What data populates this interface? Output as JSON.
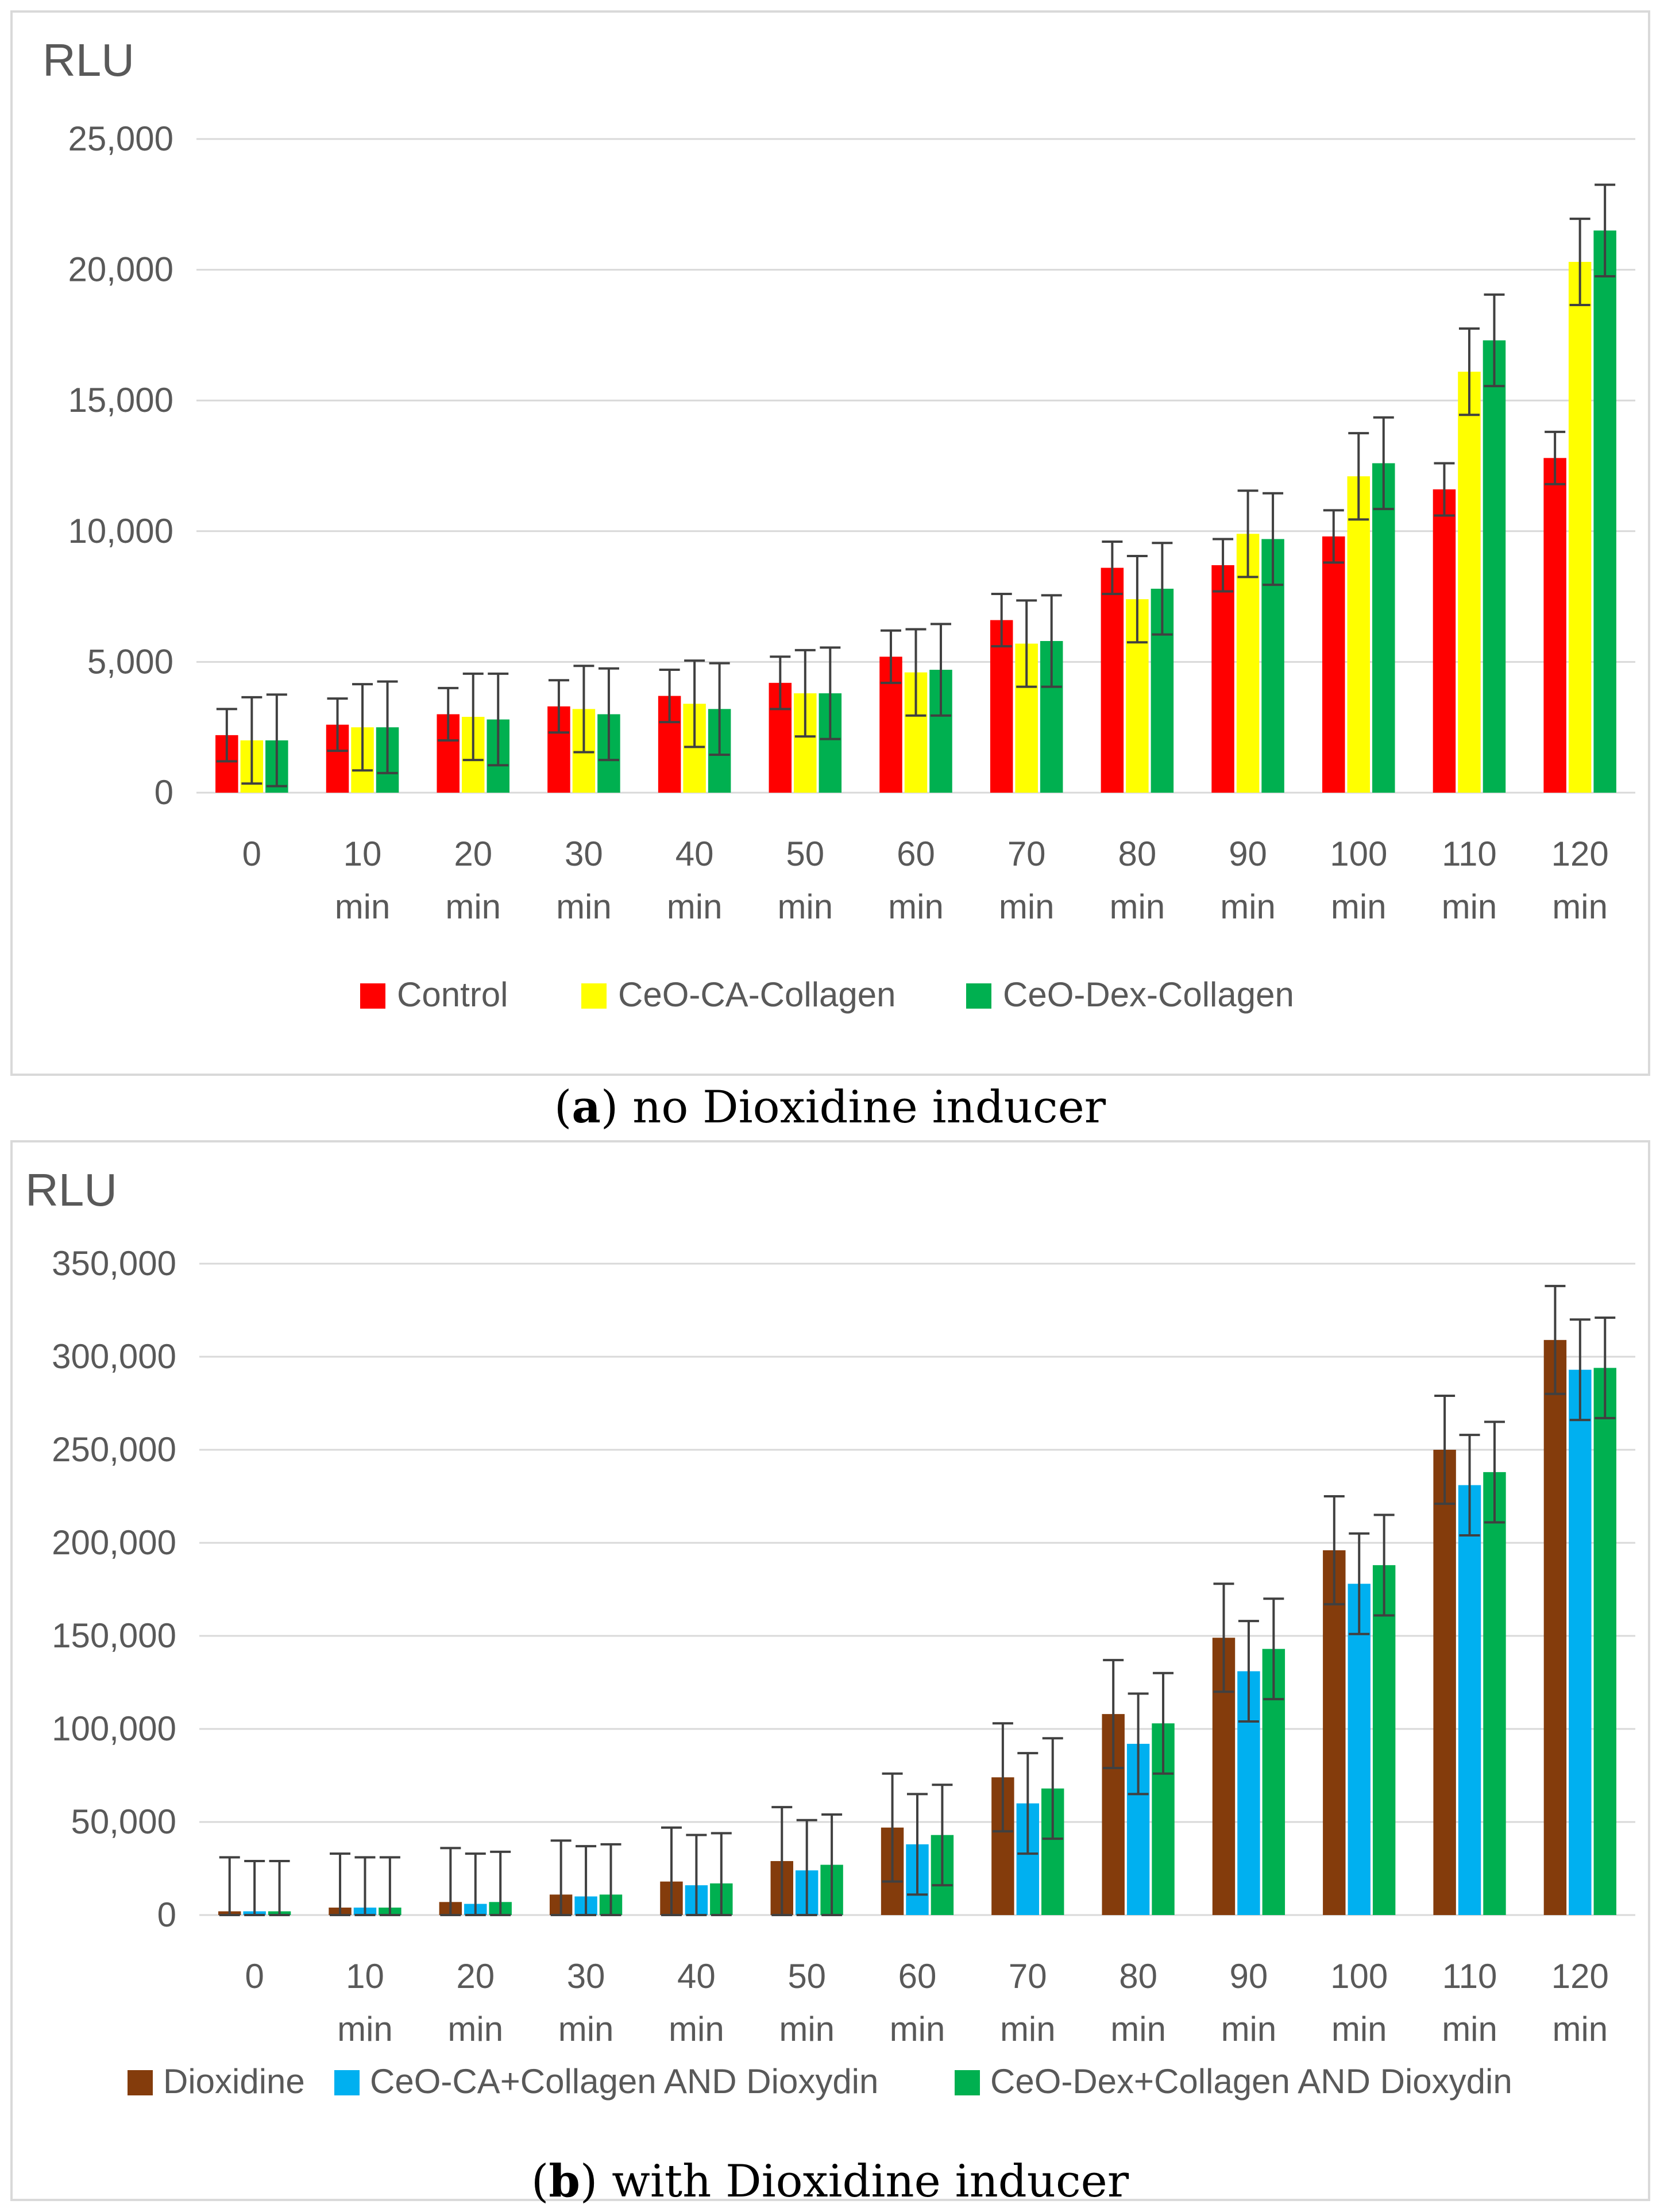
{
  "chart_data": [
    {
      "type": "bar",
      "panel_label": "a",
      "caption": "no Dioxidine inducer",
      "ylabel": "RLU",
      "ylim": [
        0,
        25000
      ],
      "yticks": [
        "0",
        "5,000",
        "10,000",
        "15,000",
        "20,000",
        "25,000"
      ],
      "categories": [
        [
          "0"
        ],
        [
          "10",
          "min"
        ],
        [
          "20",
          "min"
        ],
        [
          "30",
          "min"
        ],
        [
          "40",
          "min"
        ],
        [
          "50",
          "min"
        ],
        [
          "60",
          "min"
        ],
        [
          "70",
          "min"
        ],
        [
          "80",
          "min"
        ],
        [
          "90",
          "min"
        ],
        [
          "100",
          "min"
        ],
        [
          "110",
          "min"
        ],
        [
          "120",
          "min"
        ]
      ],
      "grid": true,
      "legend": "bottom",
      "series": [
        {
          "name": "Control",
          "color": "#ff0000",
          "values": [
            2200,
            2600,
            3000,
            3300,
            3700,
            4200,
            5200,
            6600,
            8600,
            8700,
            9800,
            11600,
            12800
          ],
          "errors": [
            1000,
            1000,
            1000,
            1000,
            1000,
            1000,
            1000,
            1000,
            1000,
            1000,
            1000,
            1000,
            1000
          ]
        },
        {
          "name": "CeO-CA-Collagen",
          "color": "#ffff00",
          "values": [
            2000,
            2500,
            2900,
            3200,
            3400,
            3800,
            4600,
            5700,
            7400,
            9900,
            12100,
            16100,
            20300
          ],
          "errors": [
            1650,
            1650,
            1650,
            1650,
            1650,
            1650,
            1650,
            1650,
            1650,
            1650,
            1650,
            1650,
            1650
          ]
        },
        {
          "name": "CeO-Dex-Collagen",
          "color": "#00b050",
          "values": [
            2000,
            2500,
            2800,
            3000,
            3200,
            3800,
            4700,
            5800,
            7800,
            9700,
            12600,
            17300,
            21500
          ],
          "errors": [
            1750,
            1750,
            1750,
            1750,
            1750,
            1750,
            1750,
            1750,
            1750,
            1750,
            1750,
            1750,
            1750
          ]
        }
      ]
    },
    {
      "type": "bar",
      "panel_label": "b",
      "caption": "with Dioxidine inducer",
      "ylabel": "RLU",
      "ylim": [
        0,
        350000
      ],
      "yticks": [
        "0",
        "50,000",
        "100,000",
        "150,000",
        "200,000",
        "250,000",
        "300,000",
        "350,000"
      ],
      "categories": [
        [
          "0"
        ],
        [
          "10",
          "min"
        ],
        [
          "20",
          "min"
        ],
        [
          "30",
          "min"
        ],
        [
          "40",
          "min"
        ],
        [
          "50",
          "min"
        ],
        [
          "60",
          "min"
        ],
        [
          "70",
          "min"
        ],
        [
          "80",
          "min"
        ],
        [
          "90",
          "min"
        ],
        [
          "100",
          "min"
        ],
        [
          "110",
          "min"
        ],
        [
          "120",
          "min"
        ]
      ],
      "grid": true,
      "legend": "bottom",
      "series": [
        {
          "name": "Dioxidine",
          "color": "#843c0c",
          "values": [
            2000,
            4000,
            7000,
            11000,
            18000,
            29000,
            47000,
            74000,
            108000,
            149000,
            196000,
            250000,
            309000
          ],
          "errors": [
            29000,
            29000,
            29000,
            29000,
            29000,
            29000,
            29000,
            29000,
            29000,
            29000,
            29000,
            29000,
            29000
          ]
        },
        {
          "name": "CeO-CA+Collagen AND Dioxydin",
          "color": "#00b0f0",
          "values": [
            2000,
            4000,
            6000,
            10000,
            16000,
            24000,
            38000,
            60000,
            92000,
            131000,
            178000,
            231000,
            293000
          ],
          "errors": [
            27000,
            27000,
            27000,
            27000,
            27000,
            27000,
            27000,
            27000,
            27000,
            27000,
            27000,
            27000,
            27000
          ]
        },
        {
          "name": "CeO-Dex+Collagen AND Dioxydin",
          "color": "#00b050",
          "values": [
            2000,
            4000,
            7000,
            11000,
            17000,
            27000,
            43000,
            68000,
            103000,
            143000,
            188000,
            238000,
            294000
          ],
          "errors": [
            27000,
            27000,
            27000,
            27000,
            27000,
            27000,
            27000,
            27000,
            27000,
            27000,
            27000,
            27000,
            27000
          ]
        }
      ]
    }
  ]
}
